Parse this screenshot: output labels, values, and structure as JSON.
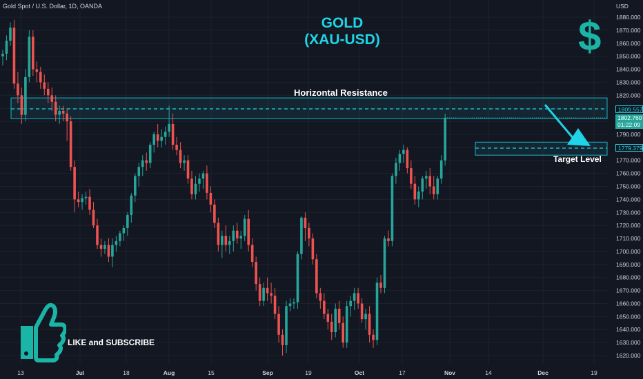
{
  "symbol": "Gold Spot / U.S. Dollar, 1D, OANDA",
  "title_line1": "GOLD",
  "title_line2": "(XAU-USD)",
  "dollar_sign": "$",
  "resistance_label": "Horizontal Resistance",
  "target_label": "Target Level",
  "cta_label": "LIKE and SUBSCRIBE",
  "icons": [
    "dollar-sign-icon",
    "thumbs-up-icon",
    "arrow-down-right-icon"
  ],
  "colors": {
    "background": "#131722",
    "up": "#26a69a",
    "down": "#ef5350",
    "accent": "#1fd4e6",
    "zone": "#1ab5c8",
    "text": "#d1d4dc"
  },
  "price_tags": {
    "resistance": "1809.557",
    "last_price": "1802.760",
    "countdown": "01:22:09",
    "target": "1779.379"
  },
  "chart_data": {
    "type": "candlestick",
    "currency": "USD",
    "yaxis_ticks": [
      1880.0,
      1870.0,
      1860.0,
      1850.0,
      1840.0,
      1830.0,
      1820.0,
      1810.0,
      1800.0,
      1790.0,
      1780.0,
      1770.0,
      1760.0,
      1750.0,
      1740.0,
      1730.0,
      1720.0,
      1710.0,
      1700.0,
      1690.0,
      1680.0,
      1670.0,
      1660.0,
      1650.0,
      1640.0,
      1630.0,
      1620.0
    ],
    "xaxis_ticks": [
      "13",
      "Jul",
      "18",
      "Aug",
      "15",
      "Sep",
      "19",
      "Oct",
      "17",
      "Nov",
      "14",
      "Dec",
      "19"
    ],
    "ylim": [
      1614,
      1888
    ],
    "resistance_zone": [
      1802,
      1818
    ],
    "resistance_level": 1809.557,
    "target_zone": [
      1774,
      1784
    ],
    "target_level": 1779.379,
    "last_price": 1802.76,
    "candles": [
      {
        "o": 1850,
        "h": 1855,
        "l": 1843,
        "c": 1852
      },
      {
        "o": 1852,
        "h": 1866,
        "l": 1847,
        "c": 1862
      },
      {
        "o": 1862,
        "h": 1876,
        "l": 1858,
        "c": 1872
      },
      {
        "o": 1872,
        "h": 1878,
        "l": 1825,
        "c": 1829
      },
      {
        "o": 1829,
        "h": 1838,
        "l": 1814,
        "c": 1820
      },
      {
        "o": 1820,
        "h": 1826,
        "l": 1798,
        "c": 1805
      },
      {
        "o": 1805,
        "h": 1840,
        "l": 1800,
        "c": 1834
      },
      {
        "o": 1834,
        "h": 1870,
        "l": 1830,
        "c": 1865
      },
      {
        "o": 1865,
        "h": 1870,
        "l": 1835,
        "c": 1840
      },
      {
        "o": 1840,
        "h": 1846,
        "l": 1830,
        "c": 1838
      },
      {
        "o": 1838,
        "h": 1842,
        "l": 1825,
        "c": 1830
      },
      {
        "o": 1830,
        "h": 1836,
        "l": 1820,
        "c": 1825
      },
      {
        "o": 1825,
        "h": 1830,
        "l": 1814,
        "c": 1820
      },
      {
        "o": 1820,
        "h": 1826,
        "l": 1808,
        "c": 1815
      },
      {
        "o": 1815,
        "h": 1820,
        "l": 1800,
        "c": 1805
      },
      {
        "o": 1805,
        "h": 1812,
        "l": 1798,
        "c": 1808
      },
      {
        "o": 1808,
        "h": 1812,
        "l": 1800,
        "c": 1806
      },
      {
        "o": 1806,
        "h": 1810,
        "l": 1785,
        "c": 1800
      },
      {
        "o": 1800,
        "h": 1804,
        "l": 1762,
        "c": 1765
      },
      {
        "o": 1765,
        "h": 1770,
        "l": 1730,
        "c": 1740
      },
      {
        "o": 1740,
        "h": 1746,
        "l": 1734,
        "c": 1738
      },
      {
        "o": 1738,
        "h": 1744,
        "l": 1732,
        "c": 1741
      },
      {
        "o": 1741,
        "h": 1746,
        "l": 1736,
        "c": 1742
      },
      {
        "o": 1742,
        "h": 1748,
        "l": 1728,
        "c": 1732
      },
      {
        "o": 1732,
        "h": 1738,
        "l": 1718,
        "c": 1720
      },
      {
        "o": 1720,
        "h": 1725,
        "l": 1702,
        "c": 1705
      },
      {
        "o": 1705,
        "h": 1710,
        "l": 1696,
        "c": 1702
      },
      {
        "o": 1702,
        "h": 1708,
        "l": 1698,
        "c": 1705
      },
      {
        "o": 1705,
        "h": 1710,
        "l": 1692,
        "c": 1696
      },
      {
        "o": 1696,
        "h": 1710,
        "l": 1688,
        "c": 1705
      },
      {
        "o": 1705,
        "h": 1712,
        "l": 1700,
        "c": 1708
      },
      {
        "o": 1708,
        "h": 1716,
        "l": 1704,
        "c": 1714
      },
      {
        "o": 1714,
        "h": 1720,
        "l": 1708,
        "c": 1718
      },
      {
        "o": 1718,
        "h": 1730,
        "l": 1712,
        "c": 1728
      },
      {
        "o": 1728,
        "h": 1745,
        "l": 1722,
        "c": 1743
      },
      {
        "o": 1743,
        "h": 1760,
        "l": 1738,
        "c": 1758
      },
      {
        "o": 1758,
        "h": 1768,
        "l": 1750,
        "c": 1765
      },
      {
        "o": 1765,
        "h": 1774,
        "l": 1758,
        "c": 1770
      },
      {
        "o": 1770,
        "h": 1776,
        "l": 1762,
        "c": 1768
      },
      {
        "o": 1768,
        "h": 1784,
        "l": 1764,
        "c": 1782
      },
      {
        "o": 1782,
        "h": 1792,
        "l": 1776,
        "c": 1790
      },
      {
        "o": 1790,
        "h": 1798,
        "l": 1780,
        "c": 1785
      },
      {
        "o": 1785,
        "h": 1794,
        "l": 1780,
        "c": 1788
      },
      {
        "o": 1788,
        "h": 1796,
        "l": 1782,
        "c": 1792
      },
      {
        "o": 1792,
        "h": 1812,
        "l": 1788,
        "c": 1798
      },
      {
        "o": 1798,
        "h": 1806,
        "l": 1778,
        "c": 1782
      },
      {
        "o": 1782,
        "h": 1788,
        "l": 1774,
        "c": 1778
      },
      {
        "o": 1778,
        "h": 1784,
        "l": 1764,
        "c": 1768
      },
      {
        "o": 1768,
        "h": 1774,
        "l": 1762,
        "c": 1770
      },
      {
        "o": 1770,
        "h": 1774,
        "l": 1752,
        "c": 1756
      },
      {
        "o": 1756,
        "h": 1762,
        "l": 1740,
        "c": 1744
      },
      {
        "o": 1744,
        "h": 1758,
        "l": 1740,
        "c": 1752
      },
      {
        "o": 1752,
        "h": 1760,
        "l": 1746,
        "c": 1756
      },
      {
        "o": 1756,
        "h": 1762,
        "l": 1748,
        "c": 1760
      },
      {
        "o": 1760,
        "h": 1766,
        "l": 1740,
        "c": 1745
      },
      {
        "o": 1745,
        "h": 1750,
        "l": 1730,
        "c": 1736
      },
      {
        "o": 1736,
        "h": 1740,
        "l": 1718,
        "c": 1722
      },
      {
        "o": 1722,
        "h": 1726,
        "l": 1700,
        "c": 1705
      },
      {
        "o": 1705,
        "h": 1716,
        "l": 1695,
        "c": 1712
      },
      {
        "o": 1712,
        "h": 1720,
        "l": 1700,
        "c": 1705
      },
      {
        "o": 1705,
        "h": 1712,
        "l": 1698,
        "c": 1708
      },
      {
        "o": 1708,
        "h": 1720,
        "l": 1700,
        "c": 1716
      },
      {
        "o": 1716,
        "h": 1722,
        "l": 1706,
        "c": 1710
      },
      {
        "o": 1710,
        "h": 1716,
        "l": 1702,
        "c": 1712
      },
      {
        "o": 1712,
        "h": 1728,
        "l": 1708,
        "c": 1725
      },
      {
        "o": 1725,
        "h": 1732,
        "l": 1700,
        "c": 1705
      },
      {
        "o": 1705,
        "h": 1710,
        "l": 1688,
        "c": 1692
      },
      {
        "o": 1692,
        "h": 1696,
        "l": 1670,
        "c": 1675
      },
      {
        "o": 1675,
        "h": 1680,
        "l": 1658,
        "c": 1662
      },
      {
        "o": 1662,
        "h": 1676,
        "l": 1658,
        "c": 1672
      },
      {
        "o": 1672,
        "h": 1680,
        "l": 1662,
        "c": 1668
      },
      {
        "o": 1668,
        "h": 1676,
        "l": 1660,
        "c": 1666
      },
      {
        "o": 1666,
        "h": 1672,
        "l": 1648,
        "c": 1652
      },
      {
        "o": 1652,
        "h": 1658,
        "l": 1630,
        "c": 1636
      },
      {
        "o": 1636,
        "h": 1640,
        "l": 1620,
        "c": 1628
      },
      {
        "o": 1628,
        "h": 1662,
        "l": 1622,
        "c": 1658
      },
      {
        "o": 1658,
        "h": 1664,
        "l": 1654,
        "c": 1660
      },
      {
        "o": 1660,
        "h": 1664,
        "l": 1656,
        "c": 1661
      },
      {
        "o": 1661,
        "h": 1700,
        "l": 1656,
        "c": 1698
      },
      {
        "o": 1698,
        "h": 1727,
        "l": 1694,
        "c": 1726
      },
      {
        "o": 1726,
        "h": 1730,
        "l": 1708,
        "c": 1718
      },
      {
        "o": 1718,
        "h": 1722,
        "l": 1704,
        "c": 1710
      },
      {
        "o": 1710,
        "h": 1714,
        "l": 1690,
        "c": 1694
      },
      {
        "o": 1694,
        "h": 1698,
        "l": 1664,
        "c": 1668
      },
      {
        "o": 1668,
        "h": 1672,
        "l": 1656,
        "c": 1662
      },
      {
        "o": 1662,
        "h": 1668,
        "l": 1648,
        "c": 1652
      },
      {
        "o": 1652,
        "h": 1656,
        "l": 1640,
        "c": 1646
      },
      {
        "o": 1646,
        "h": 1652,
        "l": 1632,
        "c": 1638
      },
      {
        "o": 1638,
        "h": 1660,
        "l": 1634,
        "c": 1656
      },
      {
        "o": 1656,
        "h": 1662,
        "l": 1640,
        "c": 1645
      },
      {
        "o": 1645,
        "h": 1650,
        "l": 1626,
        "c": 1630
      },
      {
        "o": 1630,
        "h": 1662,
        "l": 1626,
        "c": 1658
      },
      {
        "o": 1658,
        "h": 1666,
        "l": 1650,
        "c": 1662
      },
      {
        "o": 1662,
        "h": 1672,
        "l": 1655,
        "c": 1668
      },
      {
        "o": 1668,
        "h": 1672,
        "l": 1656,
        "c": 1660
      },
      {
        "o": 1660,
        "h": 1664,
        "l": 1645,
        "c": 1648
      },
      {
        "o": 1648,
        "h": 1656,
        "l": 1640,
        "c": 1652
      },
      {
        "o": 1652,
        "h": 1658,
        "l": 1630,
        "c": 1636
      },
      {
        "o": 1636,
        "h": 1640,
        "l": 1626,
        "c": 1632
      },
      {
        "o": 1632,
        "h": 1680,
        "l": 1628,
        "c": 1676
      },
      {
        "o": 1676,
        "h": 1682,
        "l": 1668,
        "c": 1672
      },
      {
        "o": 1672,
        "h": 1712,
        "l": 1668,
        "c": 1710
      },
      {
        "o": 1710,
        "h": 1716,
        "l": 1704,
        "c": 1708
      },
      {
        "o": 1708,
        "h": 1760,
        "l": 1704,
        "c": 1758
      },
      {
        "o": 1758,
        "h": 1772,
        "l": 1752,
        "c": 1768
      },
      {
        "o": 1768,
        "h": 1778,
        "l": 1762,
        "c": 1775
      },
      {
        "o": 1775,
        "h": 1782,
        "l": 1768,
        "c": 1778
      },
      {
        "o": 1778,
        "h": 1780,
        "l": 1760,
        "c": 1764
      },
      {
        "o": 1764,
        "h": 1770,
        "l": 1748,
        "c": 1752
      },
      {
        "o": 1752,
        "h": 1758,
        "l": 1736,
        "c": 1740
      },
      {
        "o": 1740,
        "h": 1750,
        "l": 1734,
        "c": 1746
      },
      {
        "o": 1746,
        "h": 1758,
        "l": 1740,
        "c": 1756
      },
      {
        "o": 1756,
        "h": 1762,
        "l": 1748,
        "c": 1758
      },
      {
        "o": 1758,
        "h": 1764,
        "l": 1744,
        "c": 1750
      },
      {
        "o": 1750,
        "h": 1758,
        "l": 1740,
        "c": 1744
      },
      {
        "o": 1744,
        "h": 1758,
        "l": 1740,
        "c": 1756
      },
      {
        "o": 1756,
        "h": 1774,
        "l": 1752,
        "c": 1770
      },
      {
        "o": 1770,
        "h": 1806,
        "l": 1766,
        "c": 1802.76
      }
    ]
  }
}
